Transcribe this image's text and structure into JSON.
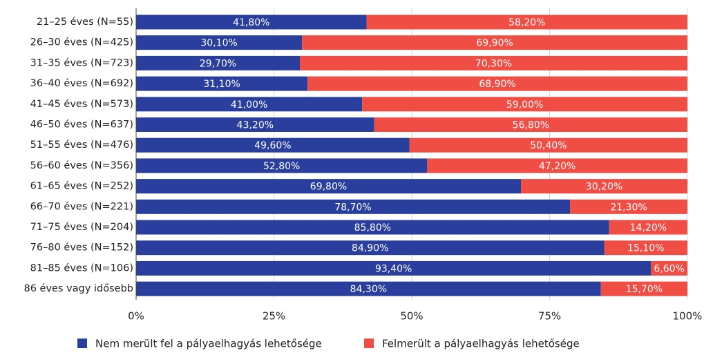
{
  "chart_data": {
    "type": "stacked_barh",
    "categories": [
      "21–25 éves (N=55)",
      "26–30 éves (N=425)",
      "31–35 éves (N=723)",
      "36–40 éves (N=692)",
      "41–45 éves (N=573)",
      "46–50 éves (N=637)",
      "51–55 éves (N=476)",
      "56–60 éves (N=356)",
      "61–65 éves (N=252)",
      "66–70 éves (N=221)",
      "71–75 éves (N=204)",
      "76–80 éves (N=152)",
      "81–85 éves (N=106)",
      "86 éves vagy idősebb"
    ],
    "series": [
      {
        "name": "Nem merült fel a pályaelhagyás lehetősége",
        "color": "#2a3f9d",
        "values": [
          41.8,
          30.1,
          29.7,
          31.1,
          41.0,
          43.2,
          49.6,
          52.8,
          69.8,
          78.7,
          85.8,
          84.9,
          93.4,
          84.3
        ],
        "value_labels": [
          "41,80%",
          "30,10%",
          "29,70%",
          "31,10%",
          "41,00%",
          "43,20%",
          "49,60%",
          "52,80%",
          "69,80%",
          "78,70%",
          "85,80%",
          "84,90%",
          "93,40%",
          "84,30%"
        ]
      },
      {
        "name": "Felmerült a pályaelhagyás lehetősége",
        "color": "#f04e45",
        "values": [
          58.2,
          69.9,
          70.3,
          68.9,
          59.0,
          56.8,
          50.4,
          47.2,
          30.2,
          21.3,
          14.2,
          15.1,
          6.6,
          15.7
        ],
        "value_labels": [
          "58,20%",
          "69,90%",
          "70,30%",
          "68,90%",
          "59,00%",
          "56,80%",
          "50,40%",
          "47,20%",
          "30,20%",
          "21,30%",
          "14,20%",
          "15,10%",
          "6,60%",
          "15,70%"
        ]
      }
    ],
    "xlim": [
      0,
      100
    ],
    "xticks": [
      {
        "value": 0,
        "label": "0%"
      },
      {
        "value": 25,
        "label": "25%"
      },
      {
        "value": 50,
        "label": "50%"
      },
      {
        "value": 75,
        "label": "75%"
      },
      {
        "value": 100,
        "label": "100%"
      }
    ],
    "grid": true,
    "legend": "bottom"
  }
}
